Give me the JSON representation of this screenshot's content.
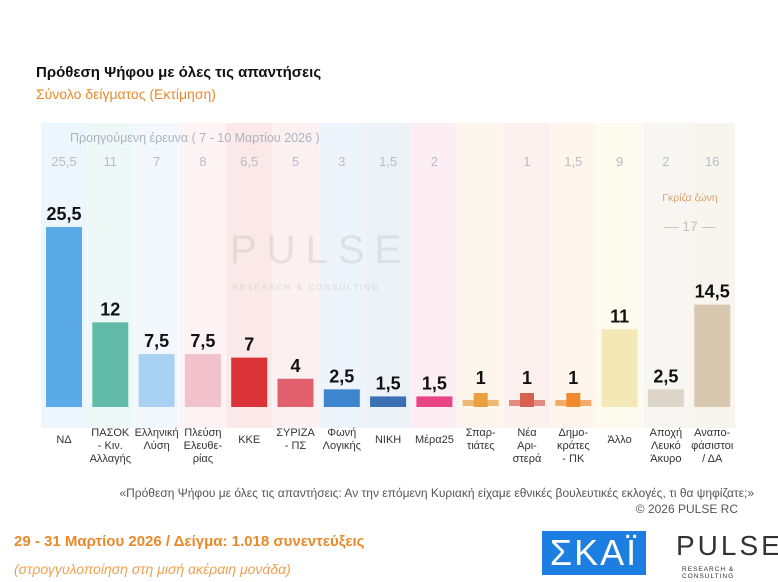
{
  "title": "Πρόθεση Ψήφου με όλες τις απαντήσεις",
  "subtitle": "Σύνολο δείγματος   (Εκτίμηση)",
  "previous_label": "Προηγούμενη έρευνα ( 7 - 10 Μαρτίου 2026 )",
  "grey_zone_label": "Γκρίζα ζώνη",
  "grey_zone_value": "17",
  "watermark": "PULSE",
  "watermark_sub": "RESEARCH & CONSULTING",
  "question": "«Πρόθεση Ψήφου με όλες τις απαντήσεις: Αν την επόμενη Κυριακή είχαμε εθνικές βουλευτικές εκλογές, τι θα ψηφίζατε;»",
  "copyright": "©  2026  PULSE RC",
  "dates": "29 - 31  Μαρτίου 2026  /  Δείγμα:  1.018 συνεντεύξεις",
  "rounding": "(στρογγυλοποίηση στη μισή ακέραιη μονάδα)",
  "logos": {
    "skai": "ΣΚΑΪ",
    "pulse": "PULSE",
    "pulse_sub": "RESEARCH & CONSULTING"
  },
  "chart_data": {
    "type": "bar",
    "ylim": [
      0,
      26
    ],
    "categories": [
      "ΝΔ",
      "ΠΑΣΟΚ\n- Κιν.\nΑλλαγής",
      "Ελληνική\nΛύση",
      "Πλεύση\nΕλευθε-\nρίας",
      "ΚΚΕ",
      "ΣΥΡΙΖΑ\n- ΠΣ",
      "Φωνή\nΛογικής",
      "ΝΙΚΗ",
      "Μέρα25",
      "Σπαρ-\nτιάτες",
      "Νέα\nΑρι-\nστερά",
      "Δημο-\nκράτες\n- ΠΚ",
      "Άλλο",
      "Αποχή\nΛευκό\nΆκυρο",
      "Αναπο-\nφάσιστοι\n/ ΔΑ"
    ],
    "values": [
      25.5,
      12,
      7.5,
      7.5,
      7,
      4,
      2.5,
      1.5,
      1.5,
      1,
      1,
      1,
      11,
      2.5,
      14.5
    ],
    "labels": [
      "25,5",
      "12",
      "7,5",
      "7,5",
      "7",
      "4",
      "2,5",
      "1,5",
      "1,5",
      "1",
      "1",
      "1",
      "11",
      "2,5",
      "14,5"
    ],
    "previous": [
      "25,5",
      "11",
      "7",
      "8",
      "6,5",
      "5",
      "3",
      "1,5",
      "2",
      "",
      "1",
      "1,5",
      "9",
      "2",
      "16"
    ],
    "colors": [
      "#5aaae8",
      "#62bba8",
      "#a9d2f2",
      "#f2c2cc",
      "#d93338",
      "#e0606e",
      "#3d85cc",
      "#3a70b4",
      "#e84585",
      "#e8a040",
      "#d86050",
      "#f08a30",
      "#f3e8b6",
      "#ddd6c8",
      "#d8c8b0"
    ],
    "band_colors": [
      "#eef6fd",
      "#eef8f6",
      "#f2f8fd",
      "#fdf3f5",
      "#fbe9ea",
      "#fcf0f1",
      "#eef4fb",
      "#edf2f8",
      "#fdeef3",
      "#fdf6ec",
      "#fcf1ee",
      "#fef5ec",
      "#fdfaee",
      "#f8f6f2",
      "#f8f4ee"
    ]
  }
}
